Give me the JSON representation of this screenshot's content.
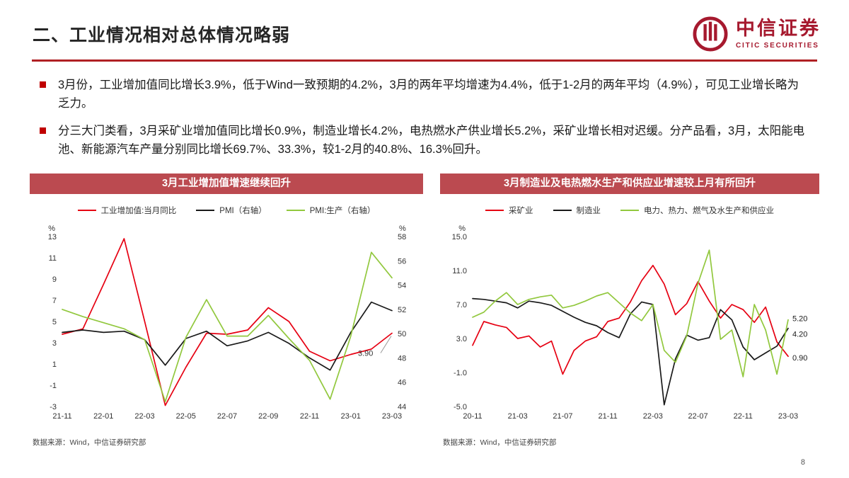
{
  "header": {
    "title": "二、工业情况相对总体情况略弱",
    "logo_cn": "中信证券",
    "logo_en": "CITIC SECURITIES"
  },
  "bullets": [
    "3月份，工业增加值同比增长3.9%，低于Wind一致预期的4.2%，3月的两年平均增速为4.4%，低于1-2月的两年平均（4.9%），可见工业增长略为乏力。",
    "分三大门类看，3月采矿业增加值同比增长0.9%，制造业增长4.2%，电热燃水产供业增长5.2%，采矿业增长相对迟缓。分产品看，3月，太阳能电池、新能源汽车产量分别同比增长69.7%、33.3%，较1-2月的40.8%、16.3%回升。"
  ],
  "footer": {
    "page_number": "8"
  },
  "colors": {
    "accent_red": "#c00000",
    "title_bar_red": "#bb4a50",
    "line_red": "#e60012",
    "line_black": "#1a1a1a",
    "line_green": "#92c83e",
    "logo_red": "#a6192e"
  },
  "chart_data": [
    {
      "type": "line",
      "title": "3月工业增加值增速继续回升",
      "source": "数据来源：Wind，中信证券研究部",
      "legend_position": "top",
      "grid": false,
      "x": [
        "21-11",
        "21-12",
        "22-01",
        "22-02",
        "22-03",
        "22-04",
        "22-05",
        "22-06",
        "22-07",
        "22-08",
        "22-09",
        "22-10",
        "22-11",
        "22-12",
        "23-01",
        "23-02",
        "23-03"
      ],
      "x_tick_indices": [
        0,
        2,
        4,
        6,
        8,
        10,
        12,
        14,
        16
      ],
      "x_tick_labels": [
        "21-11",
        "22-01",
        "22-03",
        "22-05",
        "22-07",
        "22-09",
        "22-11",
        "23-01",
        "23-03"
      ],
      "left_axis": {
        "label": "%",
        "min": -3,
        "max": 13,
        "ticks": [
          "13",
          "11",
          "9",
          "7",
          "5",
          "3",
          "1",
          "-1",
          "-3"
        ]
      },
      "right_axis": {
        "label": "%",
        "min": 44,
        "max": 58,
        "ticks": [
          "58",
          "56",
          "54",
          "52",
          "50",
          "48",
          "46",
          "44"
        ]
      },
      "series": [
        {
          "name": "工业增加值:当月同比",
          "color": "#e60012",
          "axis": "left",
          "values": [
            3.8,
            4.3,
            8.5,
            12.8,
            5.0,
            -2.9,
            0.7,
            3.9,
            3.8,
            4.2,
            6.3,
            5.0,
            2.2,
            1.3,
            1.9,
            2.4,
            3.9
          ]
        },
        {
          "name": "PMI（右轴）",
          "color": "#1a1a1a",
          "axis": "right",
          "values": [
            50.1,
            50.3,
            50.1,
            50.2,
            49.5,
            47.4,
            49.6,
            50.2,
            49.0,
            49.4,
            50.1,
            49.2,
            48.0,
            47.0,
            50.1,
            52.6,
            51.9
          ]
        },
        {
          "name": "PMI:生产（右轴）",
          "color": "#92c83e",
          "axis": "right",
          "values": [
            52.0,
            51.4,
            50.9,
            50.4,
            49.5,
            44.4,
            49.7,
            52.8,
            49.8,
            49.8,
            51.5,
            49.6,
            47.8,
            44.6,
            49.8,
            56.7,
            54.6
          ]
        }
      ],
      "annotations": [
        {
          "text": "3.90",
          "series": 0,
          "index": 16,
          "dx": -48,
          "dy": 32,
          "leader": true
        }
      ]
    },
    {
      "type": "line",
      "title": "3月制造业及电热燃水生产和供应业增速较上月有所回升",
      "source": "数据来源：Wind，中信证券研究部",
      "legend_position": "top",
      "grid": false,
      "x": [
        "20-11",
        "20-12",
        "21-01",
        "21-02",
        "21-03",
        "21-04",
        "21-05",
        "21-06",
        "21-07",
        "21-08",
        "21-09",
        "21-10",
        "21-11",
        "21-12",
        "22-01",
        "22-02",
        "22-03",
        "22-04",
        "22-05",
        "22-06",
        "22-07",
        "22-08",
        "22-09",
        "22-10",
        "22-11",
        "22-12",
        "23-01",
        "23-02",
        "23-03"
      ],
      "x_tick_indices": [
        0,
        4,
        8,
        12,
        16,
        20,
        24,
        28
      ],
      "x_tick_labels": [
        "20-11",
        "21-03",
        "21-07",
        "21-11",
        "22-03",
        "22-07",
        "22-11",
        "23-03"
      ],
      "left_axis": {
        "label": "%",
        "min": -5,
        "max": 15,
        "ticks": [
          "15.0",
          "11.0",
          "7.0",
          "3.0",
          "-1.0",
          "-5.0"
        ]
      },
      "series": [
        {
          "name": "采矿业",
          "color": "#e60012",
          "axis": "left",
          "values": [
            2.2,
            5.0,
            4.6,
            4.3,
            3.0,
            3.3,
            2.0,
            2.7,
            -1.2,
            1.6,
            2.7,
            3.2,
            5.0,
            5.4,
            7.3,
            9.8,
            11.6,
            9.4,
            5.8,
            7.1,
            9.7,
            7.4,
            5.4,
            7.0,
            6.4,
            4.9,
            6.7,
            2.6,
            0.9
          ]
        },
        {
          "name": "制造业",
          "color": "#1a1a1a",
          "axis": "left",
          "values": [
            7.7,
            7.6,
            7.4,
            7.2,
            6.6,
            7.4,
            7.2,
            6.9,
            6.2,
            5.5,
            4.9,
            4.5,
            3.7,
            3.1,
            5.9,
            7.3,
            7.0,
            -4.8,
            0.6,
            3.4,
            2.8,
            3.1,
            6.4,
            5.2,
            2.0,
            0.5,
            1.3,
            2.1,
            4.2
          ]
        },
        {
          "name": "电力、热力、燃气及水生产和供应业",
          "color": "#92c83e",
          "axis": "left",
          "values": [
            5.5,
            6.1,
            7.4,
            8.4,
            7.0,
            7.6,
            7.9,
            8.1,
            6.6,
            6.9,
            7.4,
            8.0,
            8.4,
            7.2,
            6.0,
            5.1,
            7.0,
            1.6,
            0.2,
            3.3,
            9.5,
            13.4,
            2.9,
            4.0,
            -1.5,
            7.0,
            4.0,
            -1.2,
            5.2
          ]
        }
      ],
      "end_labels": [
        {
          "text": "5.20",
          "value": 5.2,
          "dy": -2
        },
        {
          "text": "4.20",
          "value": 4.2,
          "dy": 8
        },
        {
          "text": "0.90",
          "value": 0.9,
          "dy": 2
        }
      ]
    }
  ]
}
